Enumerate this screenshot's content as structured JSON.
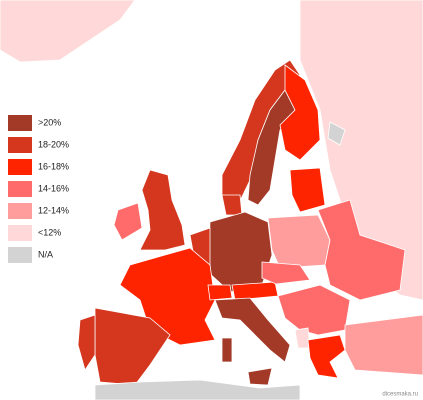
{
  "legend": [
    {
      "label": ">20%",
      "color": "#a33a28"
    },
    {
      "label": "18-20%",
      "color": "#d4361e"
    },
    {
      "label": "16-18%",
      "color": "#ff2400"
    },
    {
      "label": "14-16%",
      "color": "#ff6b6b"
    },
    {
      "label": "12-14%",
      "color": "#ff9c9c"
    },
    {
      "label": "<12%",
      "color": "#ffd9d9"
    },
    {
      "label": "N/A",
      "color": "#d3d3d3"
    }
  ],
  "watermark": "dicesmaka.ru"
}
